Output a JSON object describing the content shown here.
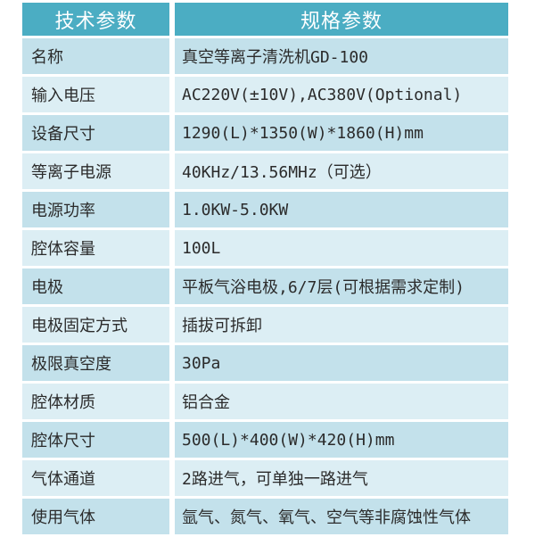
{
  "table": {
    "header": {
      "tech_params": "技术参数",
      "spec_params": "规格参数"
    },
    "rows": [
      {
        "label": "名称",
        "value": "真空等离子清洗机GD-100"
      },
      {
        "label": "输入电压",
        "value": "AC220V(±10V),AC380V(Optional)"
      },
      {
        "label": "设备尺寸",
        "value": "1290(L)*1350(W)*1860(H)mm"
      },
      {
        "label": "等离子电源",
        "value": "40KHz/13.56MHz（可选）"
      },
      {
        "label": "电源功率",
        "value": "1.0KW-5.0KW"
      },
      {
        "label": "腔体容量",
        "value": "100L"
      },
      {
        "label": "电极",
        "value": "平板气浴电极,6/7层(可根据需求定制)"
      },
      {
        "label": "电极固定方式",
        "value": "插拔可拆卸"
      },
      {
        "label": "极限真空度",
        "value": "30Pa"
      },
      {
        "label": "腔体材质",
        "value": "铝合金"
      },
      {
        "label": "腔体尺寸",
        "value": "500(L)*400(W)*420(H)mm"
      },
      {
        "label": "气体通道",
        "value": "2路进气，可单独一路进气"
      },
      {
        "label": "使用气体",
        "value": "氩气、氮气、氧气、空气等非腐蚀性气体"
      }
    ]
  },
  "colors": {
    "header_bg": "#4badc3",
    "header_text": "#ffffff",
    "row_odd_bg": "#c3e1eb",
    "row_even_bg": "#dceef4",
    "body_text": "#2b2b2b",
    "page_bg": "#ffffff"
  }
}
